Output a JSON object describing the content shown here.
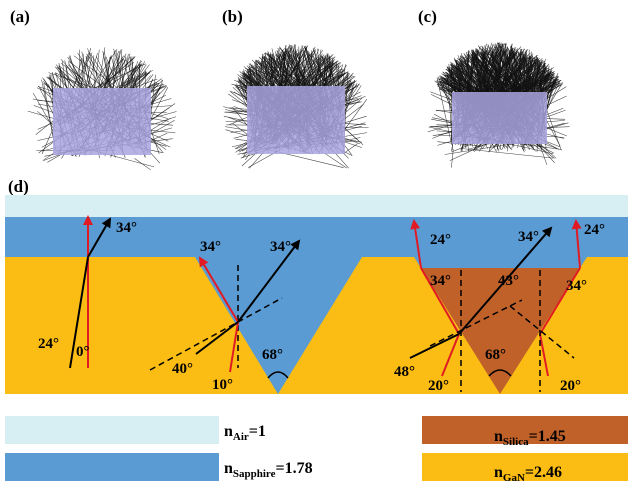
{
  "panels": {
    "a": {
      "label": "(a)"
    },
    "b": {
      "label": "(b)"
    },
    "c": {
      "label": "(c)"
    },
    "d": {
      "label": "(d)"
    }
  },
  "angles": {
    "flat_top": "34°",
    "flat_incident": "24°",
    "flat_normal": "0°",
    "sapphire_left_refracted": "34°",
    "sapphire_right_refracted": "34°",
    "sapphire_incident_40": "40°",
    "sapphire_incident_10": "10°",
    "sapphire_apex": "68°",
    "silica_top_left": "24°",
    "silica_top_mid": "34°",
    "silica_top_right": "24°",
    "silica_wall_left": "34°",
    "silica_wall_mid": "43°",
    "silica_wall_right": "34°",
    "silica_incident_48": "48°",
    "silica_incident_20_left": "20°",
    "silica_apex": "68°",
    "silica_incident_20_right": "20°"
  },
  "legend": [
    {
      "id": "air",
      "main": "n",
      "sub": "Air",
      "value": "=1",
      "color": "#d7eef3"
    },
    {
      "id": "sapphire",
      "main": "n",
      "sub": "Sapphire",
      "value": "=1.78",
      "color": "#5a9bd3"
    },
    {
      "id": "silica",
      "main": "n",
      "sub": "Silica",
      "value": "=1.45",
      "color": "#c0612a"
    },
    {
      "id": "gan",
      "main": "n",
      "sub": "GaN",
      "value": "=2.46",
      "color": "#fbbd13"
    }
  ],
  "colors": {
    "air": "#d7eef3",
    "sapphire": "#5a9bd3",
    "silica": "#c0612a",
    "gan": "#fbbd13",
    "chip": "#a9a4e0",
    "ray_red": "#e01b24",
    "ray_black": "#000000"
  }
}
